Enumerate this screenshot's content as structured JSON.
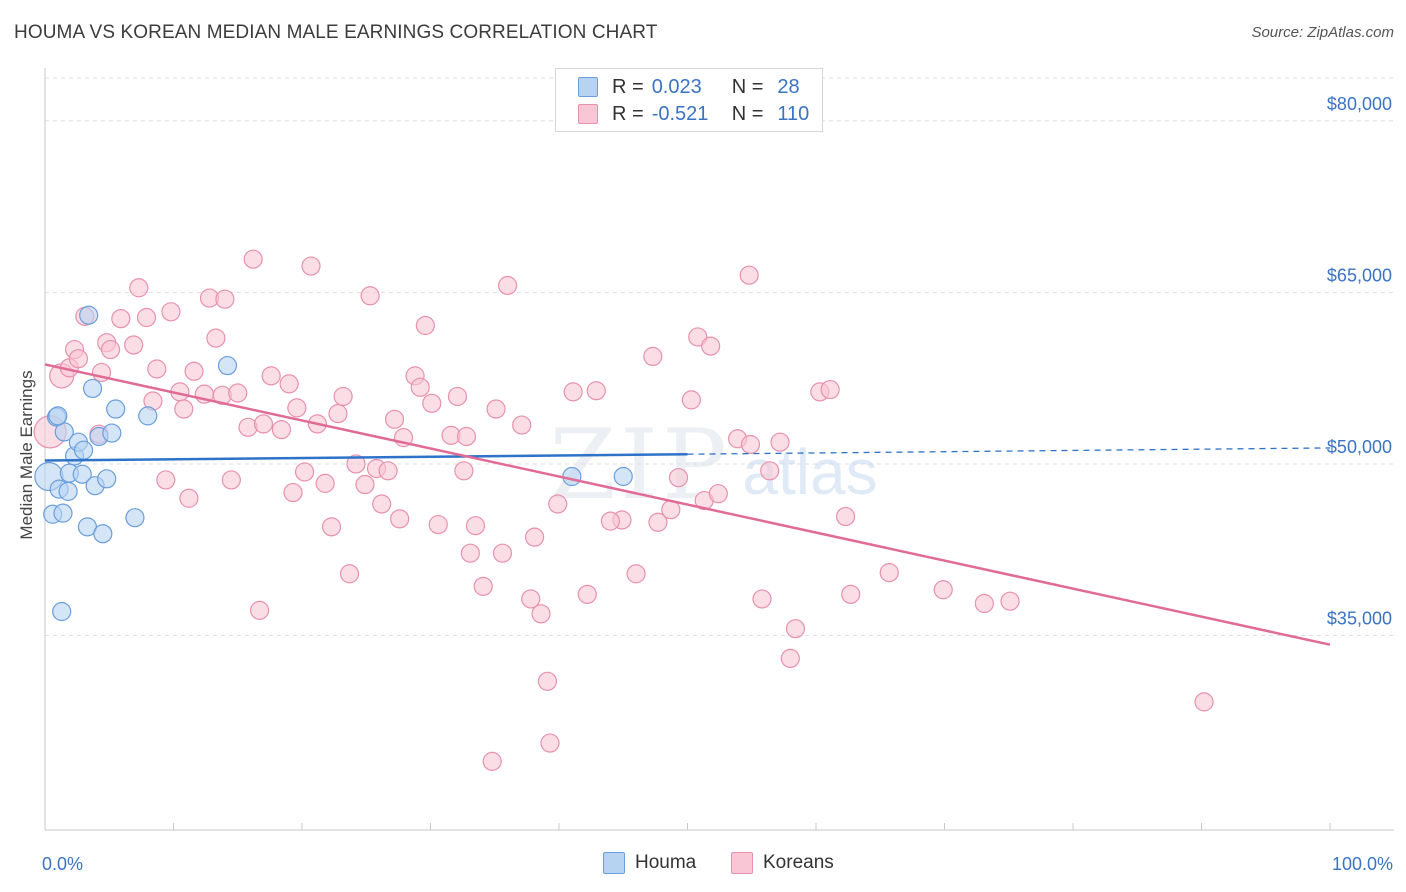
{
  "title": "HOUMA VS KOREAN MEDIAN MALE EARNINGS CORRELATION CHART",
  "source": "Source: ZipAtlas.com",
  "watermark": {
    "zip": "ZIP",
    "atlas": "atlas"
  },
  "colors": {
    "houma_fill": "#b7d3f2",
    "houma_stroke": "#6a9edc",
    "houma_line": "#2f73c9",
    "koreans_fill": "#f8c6d5",
    "koreans_stroke": "#e891ad",
    "koreans_line": "#e06b95",
    "axis_label": "#3b73c4",
    "grid": "#dddddd"
  },
  "legend": {
    "houma": {
      "r_label": "R =",
      "r_value": "0.023",
      "n_label": "N =",
      "n_value": "28"
    },
    "koreans": {
      "r_label": "R =",
      "r_value": "-0.521",
      "n_label": "N =",
      "n_value": "110"
    }
  },
  "bottom_legend": {
    "houma": "Houma",
    "koreans": "Koreans"
  },
  "chart_data": {
    "type": "scatter",
    "title": "HOUMA VS KOREAN MEDIAN MALE EARNINGS CORRELATION CHART",
    "xlabel": "",
    "ylabel": "Median Male Earnings",
    "xlim": [
      0,
      100
    ],
    "ylim": [
      18000,
      84000
    ],
    "x_tick_labels": {
      "left": "0.0%",
      "right": "100.0%"
    },
    "y_ticks": [
      35000,
      50000,
      65000,
      80000
    ],
    "y_tick_labels": [
      "$35,000",
      "$50,000",
      "$65,000",
      "$80,000"
    ],
    "grid": true,
    "series": [
      {
        "name": "Houma",
        "trend": {
          "x_start": 0,
          "y_start": 50300,
          "x_solid_end": 50,
          "x_end": 100,
          "y_end": 51400
        },
        "points": [
          [
            0.3,
            48900,
            14
          ],
          [
            0.6,
            45600,
            9
          ],
          [
            0.9,
            54100,
            9
          ],
          [
            1.1,
            47800,
            9
          ],
          [
            1.3,
            37100,
            9
          ],
          [
            1.4,
            45700,
            9
          ],
          [
            1.5,
            52800,
            9
          ],
          [
            1.8,
            47600,
            9
          ],
          [
            1.9,
            49200,
            9
          ],
          [
            2.3,
            50700,
            9
          ],
          [
            2.6,
            51900,
            9
          ],
          [
            2.9,
            49100,
            9
          ],
          [
            3.0,
            51200,
            9
          ],
          [
            3.3,
            44500,
            9
          ],
          [
            3.4,
            63000,
            9
          ],
          [
            3.7,
            56600,
            9
          ],
          [
            3.9,
            48100,
            9
          ],
          [
            4.2,
            52400,
            9
          ],
          [
            4.5,
            43900,
            9
          ],
          [
            4.8,
            48700,
            9
          ],
          [
            5.2,
            52700,
            9
          ],
          [
            5.5,
            54800,
            9
          ],
          [
            7.0,
            45300,
            9
          ],
          [
            8.0,
            54200,
            9
          ],
          [
            14.2,
            58600,
            9
          ],
          [
            41.0,
            48900,
            9
          ],
          [
            45.0,
            48900,
            9
          ],
          [
            1.0,
            54200,
            9
          ]
        ]
      },
      {
        "name": "Koreans",
        "trend": {
          "x_start": 0,
          "y_start": 58700,
          "x_end": 100,
          "y_end": 34200
        },
        "points": [
          [
            0.4,
            52800,
            16
          ],
          [
            1.3,
            57700,
            12
          ],
          [
            1.9,
            58400,
            9
          ],
          [
            2.3,
            60000,
            9
          ],
          [
            2.6,
            59200,
            9
          ],
          [
            3.1,
            62900,
            9
          ],
          [
            4.2,
            52600,
            9
          ],
          [
            4.4,
            58000,
            9
          ],
          [
            4.8,
            60600,
            9
          ],
          [
            5.1,
            60000,
            9
          ],
          [
            5.9,
            62700,
            9
          ],
          [
            6.9,
            60400,
            9
          ],
          [
            7.3,
            65400,
            9
          ],
          [
            7.9,
            62800,
            9
          ],
          [
            8.4,
            55500,
            9
          ],
          [
            8.7,
            58300,
            9
          ],
          [
            9.4,
            48600,
            9
          ],
          [
            9.8,
            63300,
            9
          ],
          [
            10.5,
            56300,
            9
          ],
          [
            10.8,
            54800,
            9
          ],
          [
            11.2,
            47000,
            9
          ],
          [
            11.6,
            58100,
            9
          ],
          [
            12.4,
            56100,
            9
          ],
          [
            12.8,
            64500,
            9
          ],
          [
            13.3,
            61000,
            9
          ],
          [
            13.8,
            56000,
            9
          ],
          [
            14.0,
            64400,
            9
          ],
          [
            14.5,
            48600,
            9
          ],
          [
            15.0,
            56200,
            9
          ],
          [
            15.8,
            53200,
            9
          ],
          [
            16.2,
            67900,
            9
          ],
          [
            16.7,
            37200,
            9
          ],
          [
            17.0,
            53500,
            9
          ],
          [
            17.6,
            57700,
            9
          ],
          [
            18.4,
            53000,
            9
          ],
          [
            19.0,
            57000,
            9
          ],
          [
            19.3,
            47500,
            9
          ],
          [
            19.6,
            54900,
            9
          ],
          [
            20.2,
            49300,
            9
          ],
          [
            20.7,
            67300,
            9
          ],
          [
            21.2,
            53500,
            9
          ],
          [
            21.8,
            48300,
            9
          ],
          [
            22.3,
            44500,
            9
          ],
          [
            22.8,
            54400,
            9
          ],
          [
            23.2,
            55900,
            9
          ],
          [
            23.7,
            40400,
            9
          ],
          [
            24.2,
            50000,
            9
          ],
          [
            24.9,
            48200,
            9
          ],
          [
            25.3,
            64700,
            9
          ],
          [
            25.8,
            49600,
            9
          ],
          [
            26.2,
            46500,
            9
          ],
          [
            26.7,
            49400,
            9
          ],
          [
            27.2,
            53900,
            9
          ],
          [
            27.6,
            45200,
            9
          ],
          [
            27.9,
            52300,
            9
          ],
          [
            28.8,
            57700,
            9
          ],
          [
            29.2,
            56700,
            9
          ],
          [
            29.6,
            62100,
            9
          ],
          [
            30.1,
            55300,
            9
          ],
          [
            30.6,
            44700,
            9
          ],
          [
            31.6,
            52500,
            9
          ],
          [
            32.1,
            55900,
            9
          ],
          [
            32.6,
            49400,
            9
          ],
          [
            33.1,
            42200,
            9
          ],
          [
            33.5,
            44600,
            9
          ],
          [
            34.1,
            39300,
            9
          ],
          [
            35.1,
            54800,
            9
          ],
          [
            35.6,
            42200,
            9
          ],
          [
            36.0,
            65600,
            9
          ],
          [
            37.1,
            53400,
            9
          ],
          [
            37.8,
            38200,
            9
          ],
          [
            38.1,
            43600,
            9
          ],
          [
            38.6,
            36900,
            9
          ],
          [
            39.1,
            31000,
            9
          ],
          [
            39.3,
            25600,
            9
          ],
          [
            39.9,
            46500,
            9
          ],
          [
            41.1,
            56300,
            9
          ],
          [
            42.2,
            38600,
            9
          ],
          [
            42.9,
            56400,
            9
          ],
          [
            44.9,
            45100,
            9
          ],
          [
            46.0,
            40400,
            9
          ],
          [
            47.3,
            59400,
            9
          ],
          [
            48.7,
            46000,
            9
          ],
          [
            49.3,
            48800,
            9
          ],
          [
            50.3,
            55600,
            9
          ],
          [
            50.8,
            61100,
            9
          ],
          [
            51.3,
            46800,
            9
          ],
          [
            51.8,
            60300,
            9
          ],
          [
            52.4,
            47400,
            9
          ],
          [
            53.9,
            52200,
            9
          ],
          [
            54.9,
            51700,
            9
          ],
          [
            55.8,
            38200,
            9
          ],
          [
            56.4,
            49400,
            9
          ],
          [
            57.2,
            51900,
            9
          ],
          [
            58.4,
            35600,
            9
          ],
          [
            58.0,
            33000,
            9
          ],
          [
            60.3,
            56300,
            9
          ],
          [
            61.1,
            56500,
            9
          ],
          [
            62.3,
            45400,
            9
          ],
          [
            62.7,
            38600,
            9
          ],
          [
            65.7,
            40500,
            9
          ],
          [
            69.9,
            39000,
            9
          ],
          [
            73.1,
            37800,
            9
          ],
          [
            75.1,
            38000,
            9
          ],
          [
            90.2,
            29200,
            9
          ],
          [
            54.8,
            66500,
            9
          ],
          [
            44.0,
            45000,
            9
          ],
          [
            47.7,
            44900,
            9
          ],
          [
            34.8,
            24000,
            9
          ],
          [
            32.8,
            52400,
            9
          ]
        ]
      }
    ]
  }
}
